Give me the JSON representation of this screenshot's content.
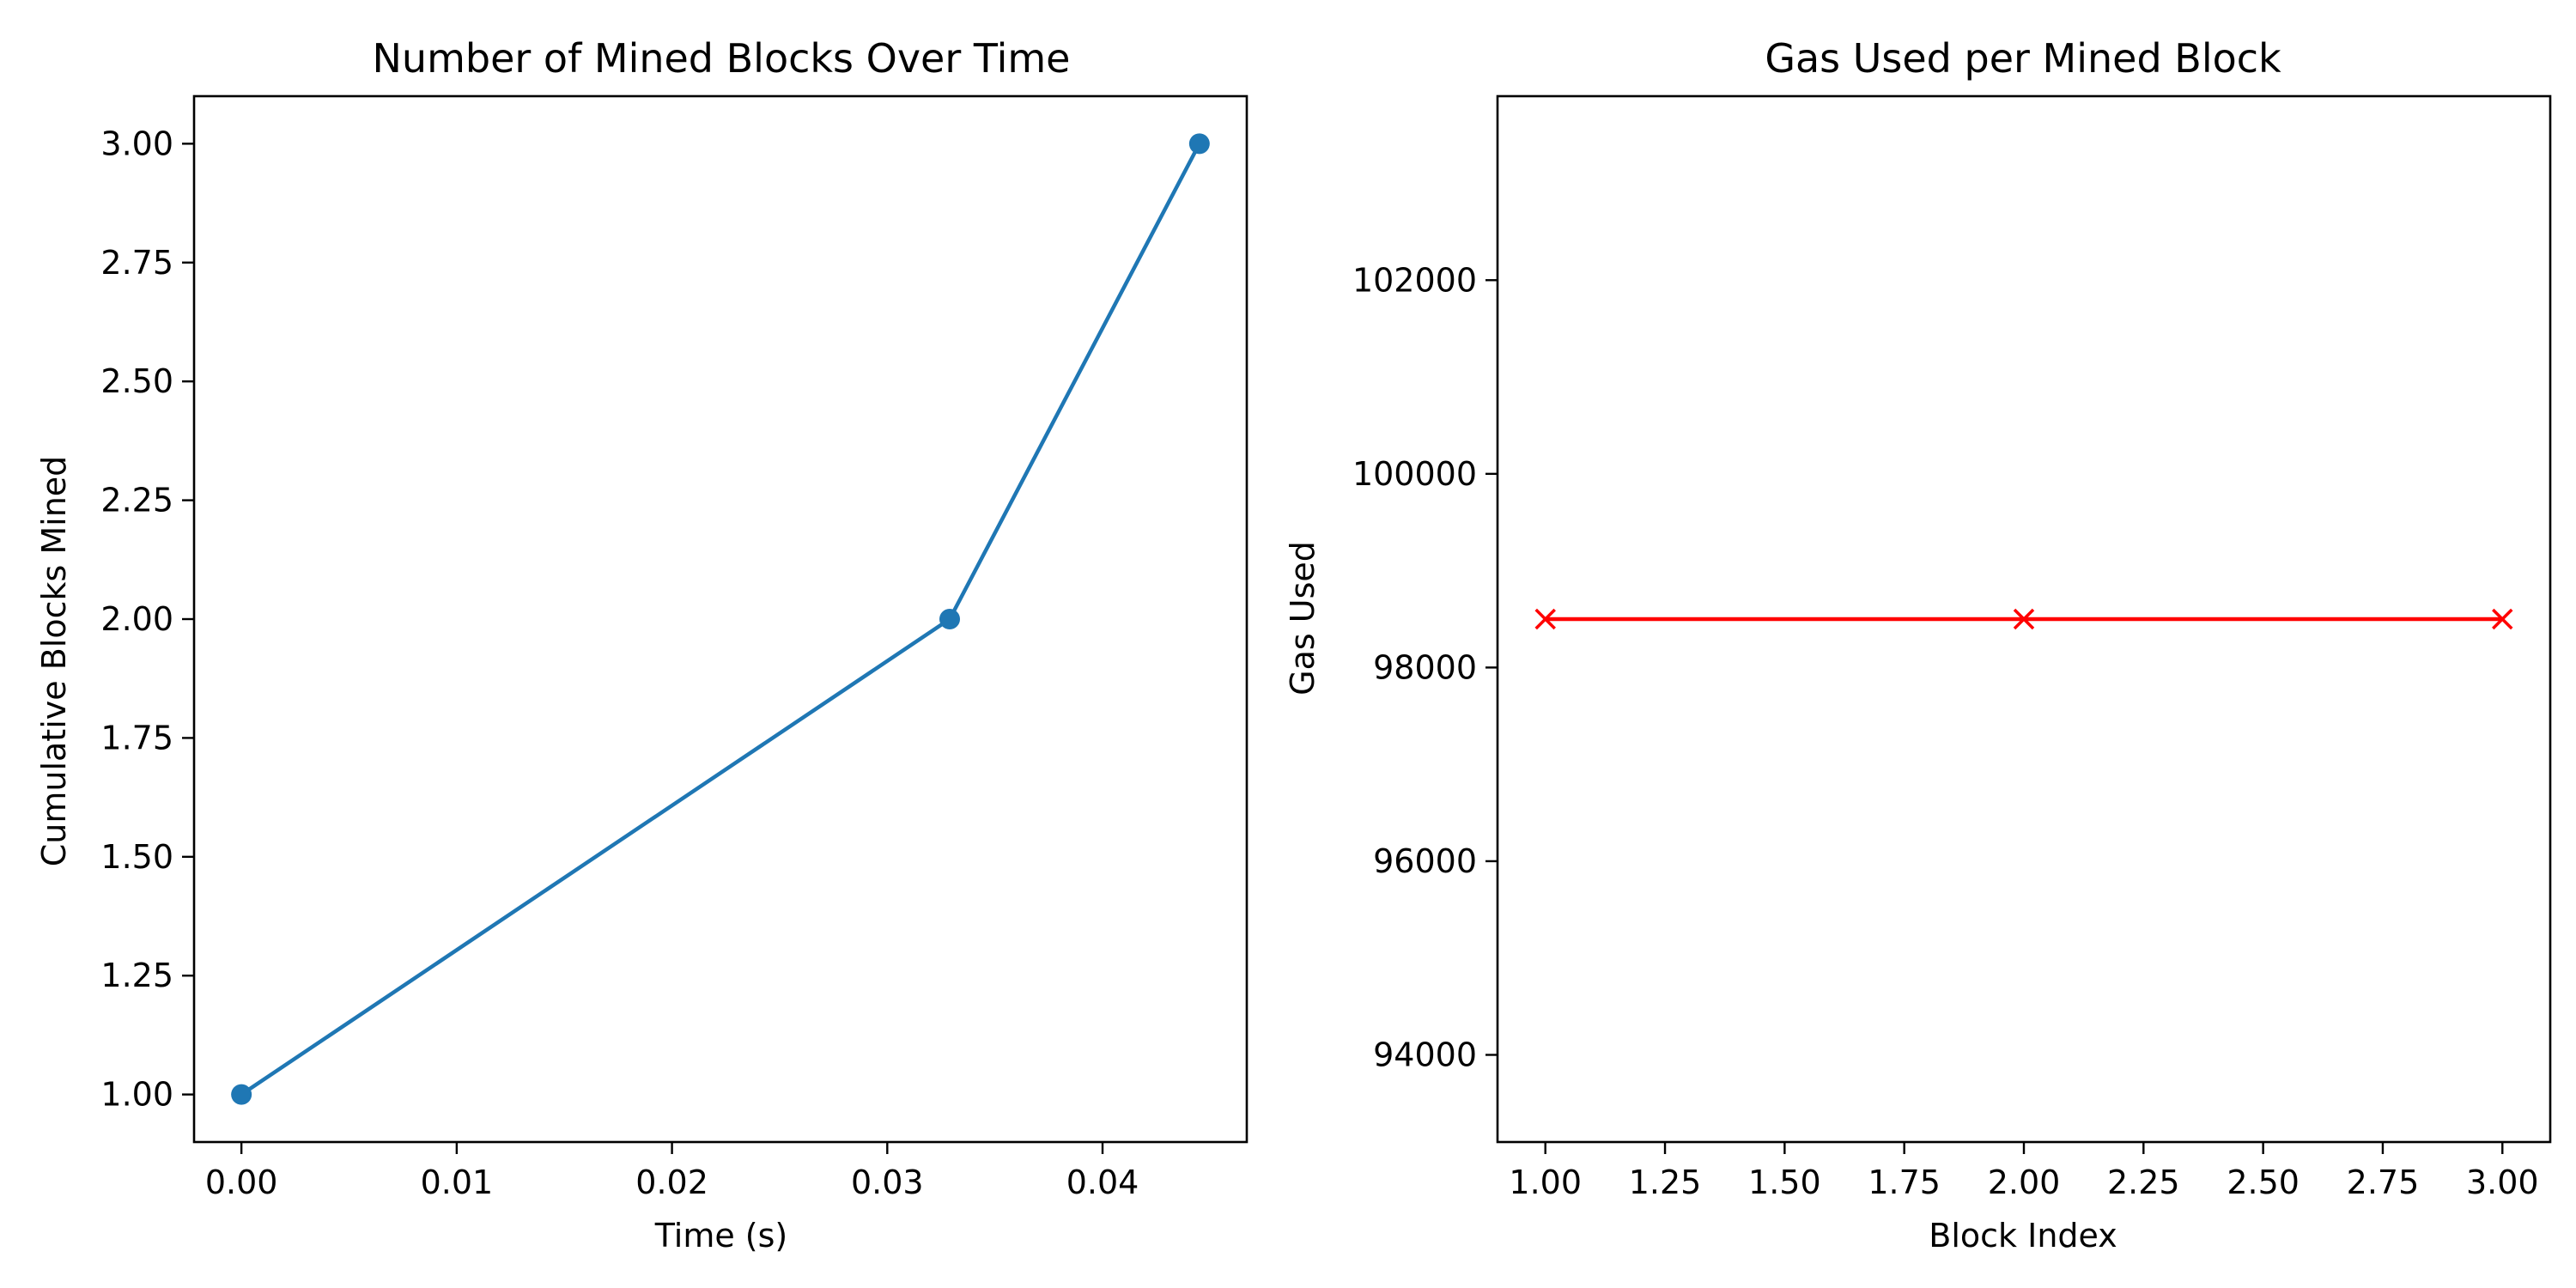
{
  "chart_data": [
    {
      "type": "line",
      "title": "Number of Mined Blocks Over Time",
      "xlabel": "Time (s)",
      "ylabel": "Cumulative Blocks Mined",
      "xlim": [
        -0.0022,
        0.0467
      ],
      "ylim": [
        0.9,
        3.1
      ],
      "xticks": [
        0.0,
        0.01,
        0.02,
        0.03,
        0.04
      ],
      "xtick_labels": [
        "0.00",
        "0.01",
        "0.02",
        "0.03",
        "0.04"
      ],
      "yticks": [
        1.0,
        1.25,
        1.5,
        1.75,
        2.0,
        2.25,
        2.5,
        2.75,
        3.0
      ],
      "ytick_labels": [
        "1.00",
        "1.25",
        "1.50",
        "1.75",
        "2.00",
        "2.25",
        "2.50",
        "2.75",
        "3.00"
      ],
      "grid": false,
      "series": [
        {
          "x": [
            0.0,
            0.0329,
            0.0445
          ],
          "y": [
            1,
            2,
            3
          ],
          "color": "#1f77b4",
          "marker": "circle"
        }
      ]
    },
    {
      "type": "line",
      "title": "Gas Used per Mined Block",
      "xlabel": "Block Index",
      "ylabel": "Gas Used",
      "xlim": [
        0.9,
        3.1
      ],
      "ylim": [
        93100,
        103900
      ],
      "xticks": [
        1.0,
        1.25,
        1.5,
        1.75,
        2.0,
        2.25,
        2.5,
        2.75,
        3.0
      ],
      "xtick_labels": [
        "1.00",
        "1.25",
        "1.50",
        "1.75",
        "2.00",
        "2.25",
        "2.50",
        "2.75",
        "3.00"
      ],
      "yticks": [
        94000,
        96000,
        98000,
        100000,
        102000
      ],
      "ytick_labels": [
        "94000",
        "96000",
        "98000",
        "100000",
        "102000"
      ],
      "grid": false,
      "series": [
        {
          "x": [
            1,
            2,
            3
          ],
          "y": [
            98500,
            98500,
            98500
          ],
          "color": "#ff0000",
          "marker": "x"
        }
      ]
    }
  ]
}
